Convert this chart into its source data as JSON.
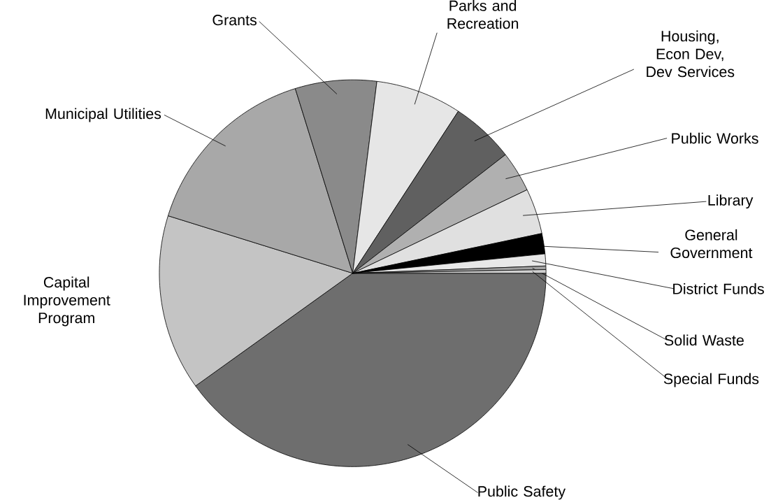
{
  "chart_data": {
    "type": "pie",
    "categories": [
      "Public Safety",
      "Capital Improvement Program",
      "Municipal Utilities",
      "Grants",
      "Parks and Recreation",
      "Housing, Econ Dev, Dev Services",
      "Public Works",
      "Library",
      "General Government",
      "District Funds",
      "Solid Waste",
      "Special Funds"
    ],
    "values": [
      40.1,
      14.7,
      15.4,
      6.8,
      7.2,
      5.3,
      3.4,
      3.8,
      1.7,
      1.0,
      0.3,
      0.3
    ],
    "colors": [
      "#6e6e6e",
      "#c4c4c4",
      "#a8a8a8",
      "#8a8a8a",
      "#e6e6e6",
      "#606060",
      "#b0b0b0",
      "#e0e0e0",
      "#000000",
      "#e8e8e8",
      "#a0a0a0",
      "#d0d0d0"
    ]
  }
}
